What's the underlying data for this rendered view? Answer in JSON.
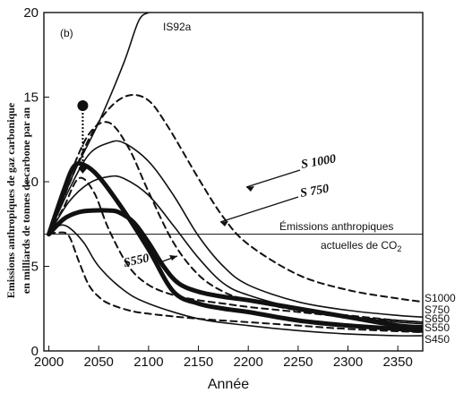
{
  "chart_data": {
    "type": "line",
    "panel_label": "(b)",
    "xlabel": "Année",
    "ylabel_line1": "Emissions anthropiques de gaz carbonique",
    "ylabel_line2": "en milliards de tonnes de carbone par an",
    "xlim": [
      1995,
      2375
    ],
    "ylim": [
      0,
      20
    ],
    "x_ticks": [
      2000,
      2050,
      2100,
      2150,
      2200,
      2250,
      2300,
      2350
    ],
    "y_ticks": [
      0,
      5,
      10,
      15,
      20
    ],
    "reference_line": {
      "y": 6.9,
      "label_line1": "Émissions anthropiques",
      "label_line2": "actuelles de CO",
      "label_sub": "2"
    },
    "series": [
      {
        "name": "IS92a",
        "style": "solid-thin",
        "x": [
          2000,
          2025,
          2050,
          2075,
          2090,
          2100
        ],
        "y": [
          6.9,
          10.5,
          13.5,
          17.0,
          19.5,
          20.0
        ]
      },
      {
        "name": "S1000",
        "style": "dashed",
        "x": [
          2000,
          2020,
          2040,
          2060,
          2080,
          2100,
          2120,
          2150,
          2175,
          2200,
          2250,
          2300,
          2350,
          2375
        ],
        "y": [
          6.9,
          9.8,
          12.5,
          14.3,
          15.1,
          14.8,
          13.2,
          10.2,
          7.9,
          6.3,
          4.5,
          3.6,
          3.1,
          2.9
        ]
      },
      {
        "name": "S750",
        "style": "solid-thin",
        "x": [
          2000,
          2020,
          2040,
          2060,
          2075,
          2100,
          2125,
          2150,
          2175,
          2200,
          2250,
          2300,
          2350,
          2375
        ],
        "y": [
          6.9,
          9.5,
          11.6,
          12.3,
          12.3,
          11.2,
          9.2,
          6.8,
          5.0,
          3.9,
          2.9,
          2.4,
          2.1,
          2.0
        ]
      },
      {
        "name": "S650",
        "style": "dashed",
        "x": [
          2000,
          2020,
          2040,
          2060,
          2080,
          2100,
          2125,
          2150,
          2175,
          2200,
          2250,
          2300,
          2350,
          2375
        ],
        "y": [
          6.9,
          10.2,
          12.8,
          13.5,
          12.0,
          9.4,
          6.4,
          4.5,
          3.5,
          3.0,
          2.4,
          2.1,
          1.8,
          1.7
        ]
      },
      {
        "name": "S550",
        "style": "solid-thin",
        "x": [
          2000,
          2020,
          2040,
          2060,
          2075,
          2100,
          2125,
          2150,
          2175,
          2200,
          2250,
          2300,
          2350,
          2375
        ],
        "y": [
          6.9,
          8.8,
          9.9,
          10.3,
          10.2,
          9.2,
          7.4,
          5.5,
          4.0,
          3.3,
          2.5,
          2.0,
          1.7,
          1.6
        ]
      },
      {
        "name": "S450",
        "style": "dashed",
        "x": [
          2000,
          2015,
          2030,
          2045,
          2060,
          2080,
          2100,
          2125,
          2150,
          2175,
          2200,
          2250,
          2300,
          2350,
          2375
        ],
        "y": [
          6.9,
          8.5,
          10.2,
          9.4,
          7.2,
          5.0,
          3.9,
          3.3,
          3.0,
          2.8,
          2.6,
          2.3,
          2.0,
          1.8,
          1.7
        ]
      },
      {
        "name": "",
        "style": "thick",
        "x": [
          2000,
          2015,
          2025,
          2035,
          2050,
          2075,
          2100,
          2125,
          2150,
          2175,
          2200,
          2250,
          2300,
          2350,
          2375
        ],
        "y": [
          6.9,
          9.5,
          10.9,
          11.0,
          10.3,
          8.3,
          6.0,
          3.5,
          2.8,
          2.5,
          2.3,
          1.8,
          1.5,
          1.3,
          1.2
        ]
      },
      {
        "name": "",
        "style": "thick",
        "x": [
          2000,
          2015,
          2030,
          2045,
          2060,
          2070,
          2085,
          2100,
          2115,
          2130,
          2150,
          2175,
          2200,
          2250,
          2300,
          2350,
          2375
        ],
        "y": [
          6.9,
          7.8,
          8.2,
          8.3,
          8.3,
          8.2,
          7.6,
          6.4,
          5.0,
          4.0,
          3.5,
          3.2,
          3.0,
          2.5,
          2.0,
          1.5,
          1.4
        ]
      },
      {
        "name": "",
        "style": "dashed",
        "x": [
          2000,
          2010,
          2020,
          2030,
          2040,
          2050,
          2060,
          2080,
          2100,
          2150,
          2200,
          2250,
          2300,
          2375
        ],
        "y": [
          6.9,
          7.0,
          6.8,
          5.3,
          3.9,
          3.2,
          2.8,
          2.4,
          2.2,
          1.9,
          1.7,
          1.5,
          1.3,
          1.1
        ]
      },
      {
        "name": "",
        "style": "solid-thin",
        "x": [
          2000,
          2010,
          2020,
          2035,
          2050,
          2075,
          2100,
          2150,
          2200,
          2250,
          2300,
          2350,
          2375
        ],
        "y": [
          6.9,
          7.4,
          7.3,
          6.4,
          5.0,
          3.6,
          2.8,
          1.9,
          1.5,
          1.2,
          1.0,
          0.9,
          0.9
        ]
      }
    ],
    "marker": {
      "x": 2034,
      "y_top": 14.5,
      "y_bottom": 10.8
    },
    "annotations": {
      "is92a": "IS92a",
      "s1000": "S 1000",
      "s750": "S 750",
      "s550": "S550"
    },
    "end_labels": [
      "S1000",
      "S750",
      "S650",
      "S550",
      "S450"
    ]
  }
}
